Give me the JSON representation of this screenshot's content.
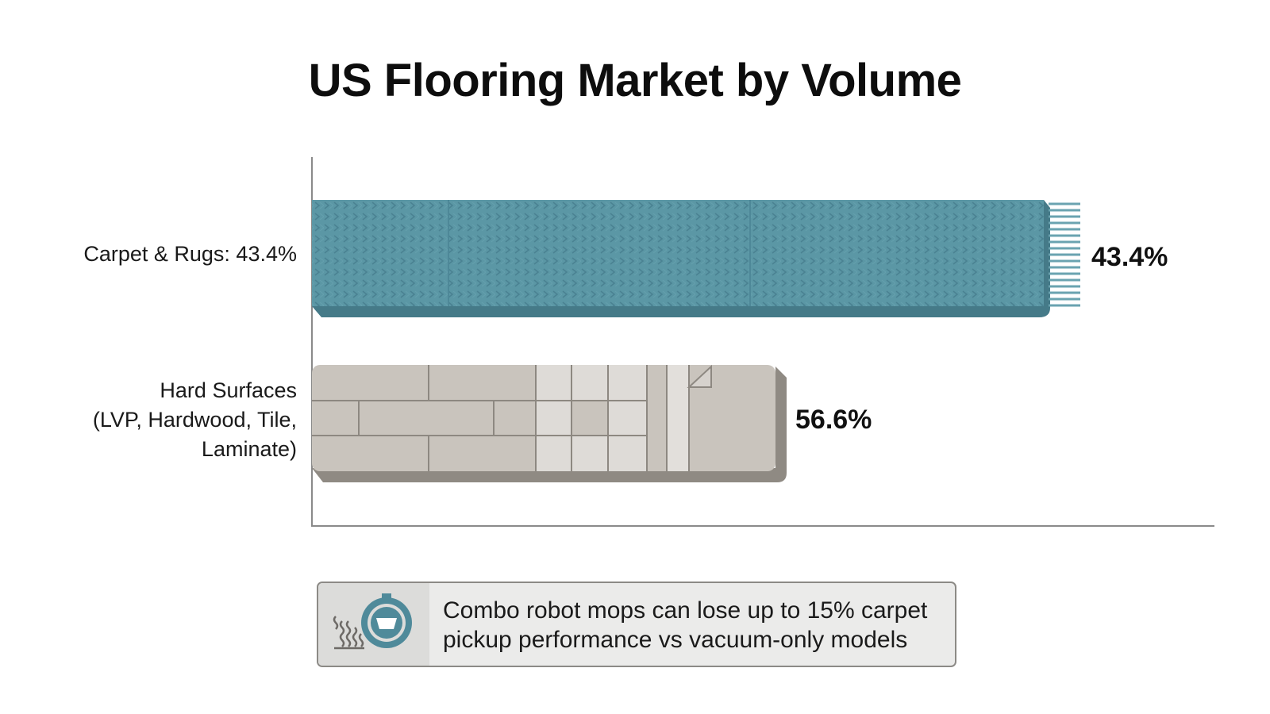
{
  "chart_data": {
    "type": "bar",
    "orientation": "horizontal",
    "title": "US Flooring Market by Volume",
    "categories": [
      "Carpet & Rugs: 43.4%",
      "Hard Surfaces\n(LVP, Hardwood, Tile,\nLaminate)"
    ],
    "values": [
      43.4,
      56.6
    ],
    "value_labels": [
      "43.4%",
      "56.6%"
    ],
    "unit": "%",
    "grid": false,
    "colors": [
      "#5b97a5",
      "#c9c4bd"
    ]
  },
  "callout": {
    "icon": "robot-mop-icon",
    "text": "Combo robot mops can lose up to 15% carpet pickup performance vs vacuum-only models"
  }
}
